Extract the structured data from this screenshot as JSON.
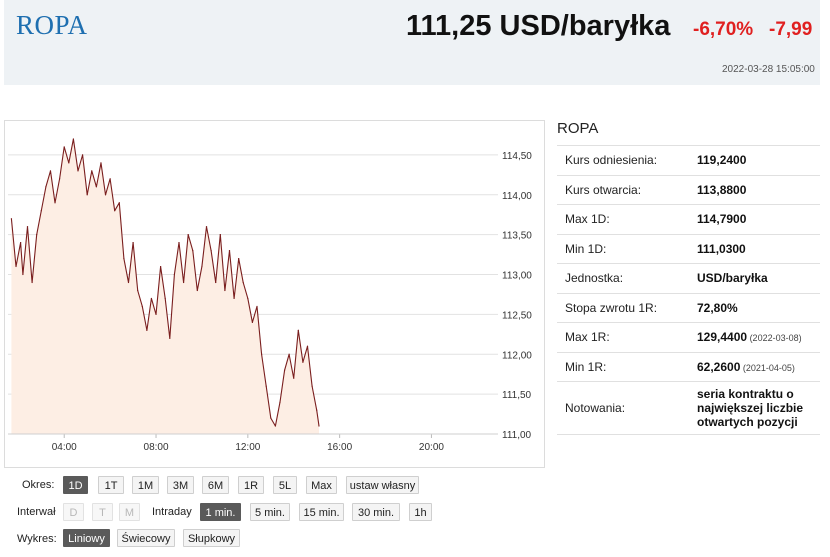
{
  "header": {
    "name": "ROPA",
    "price": "111,25 USD/baryłka",
    "change_percent": "-6,70%",
    "change_value": "-7,99",
    "timestamp": "2022-03-28 15:05:00",
    "colors": {
      "brand": "#1e6fb0",
      "negative": "#e02020",
      "header_bg": "#eef2f5"
    }
  },
  "chart_data": {
    "type": "area",
    "y_ticks": [
      "114,50",
      "114,00",
      "113,50",
      "113,00",
      "112,50",
      "112,00",
      "111,50",
      "111,00"
    ],
    "x_ticks": [
      "04:00",
      "08:00",
      "12:00",
      "16:00",
      "20:00"
    ],
    "ylim": [
      111.0,
      114.85
    ],
    "xlim_hours": [
      1.55,
      22.9
    ],
    "colors": {
      "line": "#7a1e1e",
      "fill": "#fdeee4",
      "grid": "#e2e2e2"
    },
    "grid": true,
    "x": [
      1.7,
      1.9,
      2.1,
      2.2,
      2.4,
      2.6,
      2.8,
      3.0,
      3.2,
      3.4,
      3.6,
      3.8,
      4.0,
      4.2,
      4.4,
      4.6,
      4.8,
      5.0,
      5.2,
      5.4,
      5.6,
      5.8,
      6.0,
      6.2,
      6.4,
      6.6,
      6.8,
      7.0,
      7.2,
      7.4,
      7.6,
      7.8,
      8.0,
      8.2,
      8.4,
      8.6,
      8.8,
      9.0,
      9.2,
      9.4,
      9.6,
      9.8,
      10.0,
      10.2,
      10.4,
      10.6,
      10.8,
      11.0,
      11.2,
      11.4,
      11.6,
      11.8,
      12.0,
      12.2,
      12.4,
      12.6,
      12.8,
      13.0,
      13.2,
      13.4,
      13.6,
      13.8,
      14.0,
      14.2,
      14.4,
      14.6,
      14.8,
      15.0,
      15.1
    ],
    "values": [
      113.7,
      113.1,
      113.4,
      113.0,
      113.6,
      112.9,
      113.5,
      113.8,
      114.1,
      114.3,
      113.9,
      114.2,
      114.6,
      114.4,
      114.7,
      114.3,
      114.5,
      114.0,
      114.3,
      114.1,
      114.4,
      114.0,
      114.2,
      113.8,
      113.9,
      113.2,
      112.9,
      113.4,
      112.8,
      112.6,
      112.3,
      112.7,
      112.5,
      113.1,
      112.7,
      112.2,
      113.0,
      113.4,
      112.9,
      113.5,
      113.3,
      112.8,
      113.1,
      113.6,
      113.3,
      112.9,
      113.5,
      112.8,
      113.3,
      112.7,
      113.2,
      112.9,
      112.7,
      112.4,
      112.6,
      112.0,
      111.6,
      111.2,
      111.1,
      111.4,
      111.8,
      112.0,
      111.7,
      112.3,
      111.9,
      112.1,
      111.6,
      111.3,
      111.1
    ]
  },
  "controls": {
    "period_label": "Okres:",
    "period_buttons": [
      "1D",
      "1T",
      "1M",
      "3M",
      "6M",
      "1R",
      "5L",
      "Max",
      "ustaw własny"
    ],
    "period_active": "1D",
    "interval_label": "Interwał",
    "interval_buttons": [
      "D",
      "T",
      "M"
    ],
    "intraday_label": "Intraday",
    "intraday_buttons": [
      "1 min.",
      "5 min.",
      "15 min.",
      "30 min.",
      "1h"
    ],
    "intraday_active": "1 min.",
    "chart_type_label": "Wykres:",
    "chart_type_buttons": [
      "Liniowy",
      "Świecowy",
      "Słupkowy"
    ],
    "chart_type_active": "Liniowy"
  },
  "side": {
    "title": "ROPA",
    "rows": [
      {
        "label": "Kurs odniesienia:",
        "value": "119,2400",
        "note": ""
      },
      {
        "label": "Kurs otwarcia:",
        "value": "113,8800",
        "note": ""
      },
      {
        "label": "Max 1D:",
        "value": "114,7900",
        "note": ""
      },
      {
        "label": "Min 1D:",
        "value": "111,0300",
        "note": ""
      },
      {
        "label": "Jednostka:",
        "value": "USD/baryłka",
        "note": ""
      },
      {
        "label": "Stopa zwrotu 1R:",
        "value": "72,80%",
        "note": ""
      },
      {
        "label": "Max 1R:",
        "value": "129,4400",
        "note": "(2022-03-08)"
      },
      {
        "label": "Min 1R:",
        "value": "62,2600",
        "note": "(2021-04-05)"
      }
    ],
    "listing_label": "Notowania:",
    "listing_value": "seria kontraktu o największej liczbie otwartych pozycji"
  }
}
